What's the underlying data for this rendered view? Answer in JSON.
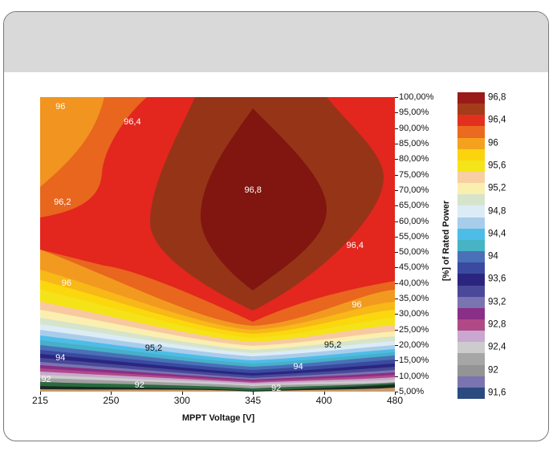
{
  "chart_data": {
    "type": "heatmap",
    "subtype": "filled-contour",
    "title": "",
    "xlabel": "MPPT Voltage [V]",
    "ylabel": "[%] of Rated Power",
    "x_ticks": [
      "215",
      "250",
      "300",
      "345",
      "400",
      "480"
    ],
    "y_ticks": [
      "100,00%",
      "95,00%",
      "90,00%",
      "85,00%",
      "80,00%",
      "75,00%",
      "70,00%",
      "65,00%",
      "60,00%",
      "55,00%",
      "50,00%",
      "45,00%",
      "40,00%",
      "35,00%",
      "30,00%",
      "25,00%",
      "20,00%",
      "15,00%",
      "10,00%",
      "5,00%"
    ],
    "ylim": [
      5,
      100
    ],
    "contour_labels": [
      {
        "text": "96",
        "x": 225,
        "y": 97,
        "dark": false
      },
      {
        "text": "96,4",
        "x": 265,
        "y": 92,
        "dark": false
      },
      {
        "text": "96,8",
        "x": 345,
        "y": 70,
        "dark": false
      },
      {
        "text": "96,2",
        "x": 226,
        "y": 66,
        "dark": false
      },
      {
        "text": "96,4",
        "x": 435,
        "y": 52,
        "dark": false
      },
      {
        "text": "96",
        "x": 228,
        "y": 40,
        "dark": false
      },
      {
        "text": "96",
        "x": 437,
        "y": 33,
        "dark": false
      },
      {
        "text": "95,2",
        "x": 280,
        "y": 19,
        "dark": true
      },
      {
        "text": "95,2",
        "x": 410,
        "y": 20,
        "dark": true
      },
      {
        "text": "94",
        "x": 225,
        "y": 16,
        "dark": false
      },
      {
        "text": "94",
        "x": 380,
        "y": 13,
        "dark": false
      },
      {
        "text": "92",
        "x": 218,
        "y": 9,
        "dark": false
      },
      {
        "text": "92",
        "x": 270,
        "y": 7,
        "dark": false
      },
      {
        "text": "92",
        "x": 363,
        "y": 6,
        "dark": false
      }
    ],
    "legend": {
      "placement": "right",
      "labels": [
        "96,8",
        "96,4",
        "96",
        "95,6",
        "95,2",
        "94,8",
        "94,4",
        "94",
        "93,6",
        "93,2",
        "92,8",
        "92,4",
        "92",
        "91,6"
      ],
      "colors": [
        "#9a1a1a",
        "#a43c1a",
        "#e3301e",
        "#ea6a20",
        "#f4a21e",
        "#fbd40e",
        "#f4e41a",
        "#f8cfa4",
        "#fbefb0",
        "#d6e4cc",
        "#dcecf6",
        "#a8cdeb",
        "#4dbde8",
        "#46b4c4",
        "#4a70b8",
        "#3a4aa0",
        "#2a2680",
        "#4a4898",
        "#7a74b0",
        "#8a2e86",
        "#b04a86",
        "#c8a8d0",
        "#cccccc",
        "#a6a6a6",
        "#949494",
        "#7a74b0",
        "#2a4a80"
      ]
    },
    "peak": {
      "value": "96,8",
      "x": "345",
      "y_percent": 70
    }
  }
}
